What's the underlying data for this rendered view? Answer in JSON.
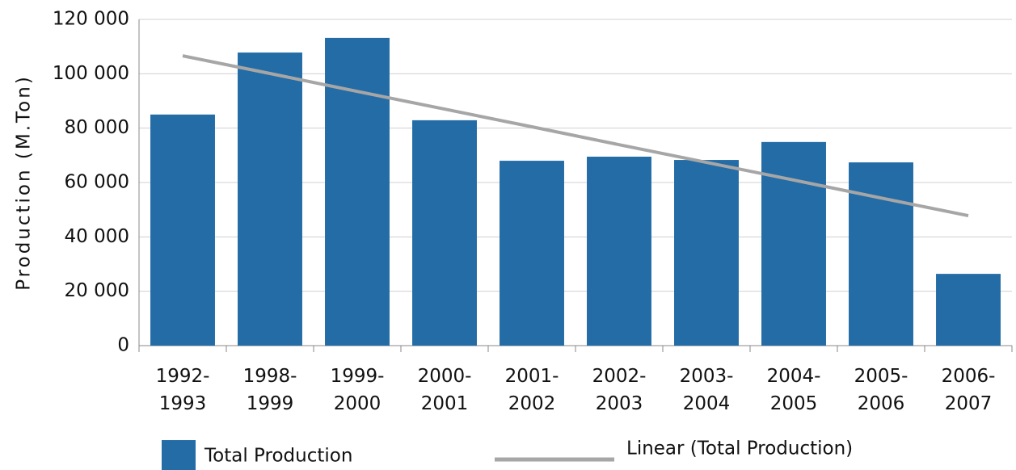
{
  "chart_data": {
    "type": "bar",
    "y_label": "Production (M.Ton)",
    "categories": [
      "1992-1993",
      "1998-1999",
      "1999-2000",
      "2000-2001",
      "2001-2002",
      "2002-2003",
      "2003-2004",
      "2004-2005",
      "2005-2006",
      "2006-2007"
    ],
    "series": [
      {
        "name": "Total Production",
        "color": "#236ca6",
        "values": [
          85000,
          107800,
          113200,
          82900,
          68000,
          69500,
          68300,
          74900,
          67400,
          26400
        ]
      },
      {
        "name": "Linear (Total Production)",
        "type": "line",
        "color": "#a6a6a6",
        "values": [
          106600,
          100100,
          93500,
          87000,
          80500,
          73900,
          67400,
          60900,
          54300,
          47800
        ]
      }
    ],
    "ylim": [
      0,
      120000
    ],
    "yticks": [
      0,
      {
        "value": 20000,
        "label": "20 000"
      },
      {
        "value": 40000,
        "label": "40 000"
      },
      {
        "value": 60000,
        "label": "60 000"
      },
      {
        "value": 80000,
        "label": "80 000"
      },
      {
        "value": 100000,
        "label": "100 000"
      },
      {
        "value": 120000,
        "label": "120 000"
      }
    ],
    "grid": true
  }
}
